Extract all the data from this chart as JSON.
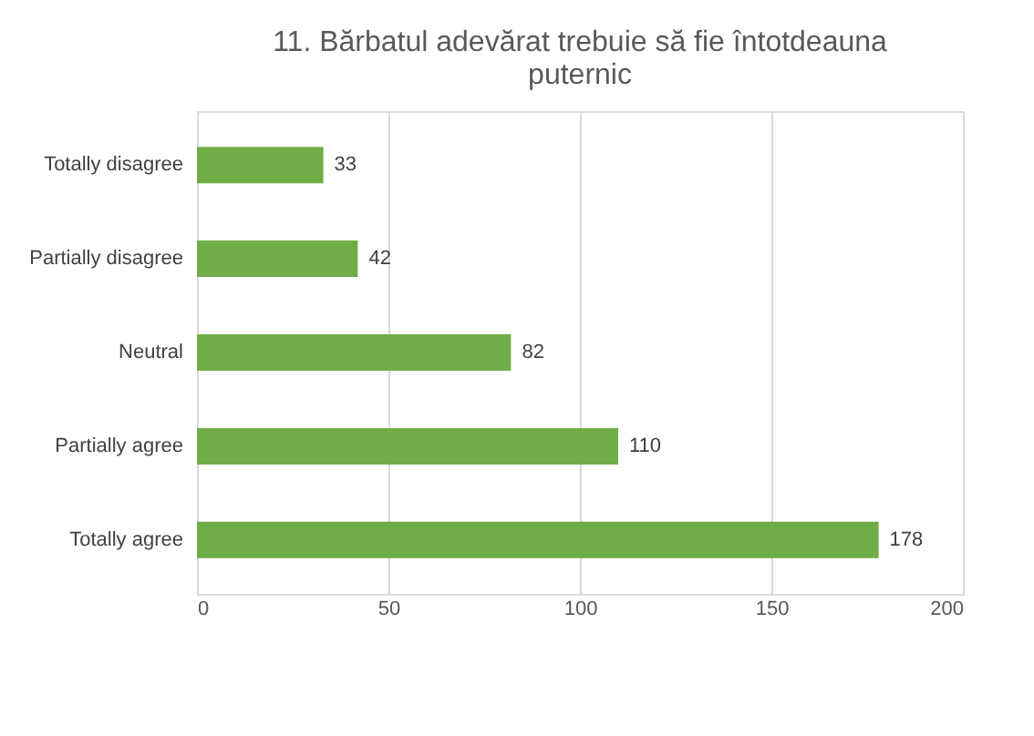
{
  "chart_data": {
    "type": "bar",
    "orientation": "horizontal",
    "title": "11. Bărbatul adevărat trebuie să fie întotdeauna puternic",
    "categories": [
      "Totally disagree",
      "Partially disagree",
      "Neutral",
      "Partially agree",
      "Totally agree"
    ],
    "values": [
      33,
      42,
      82,
      110,
      178
    ],
    "color": "#70ad47",
    "xlim": [
      0,
      200
    ],
    "xticks": [
      0,
      50,
      100,
      150,
      200
    ],
    "grid": "x",
    "data_labels": true
  }
}
